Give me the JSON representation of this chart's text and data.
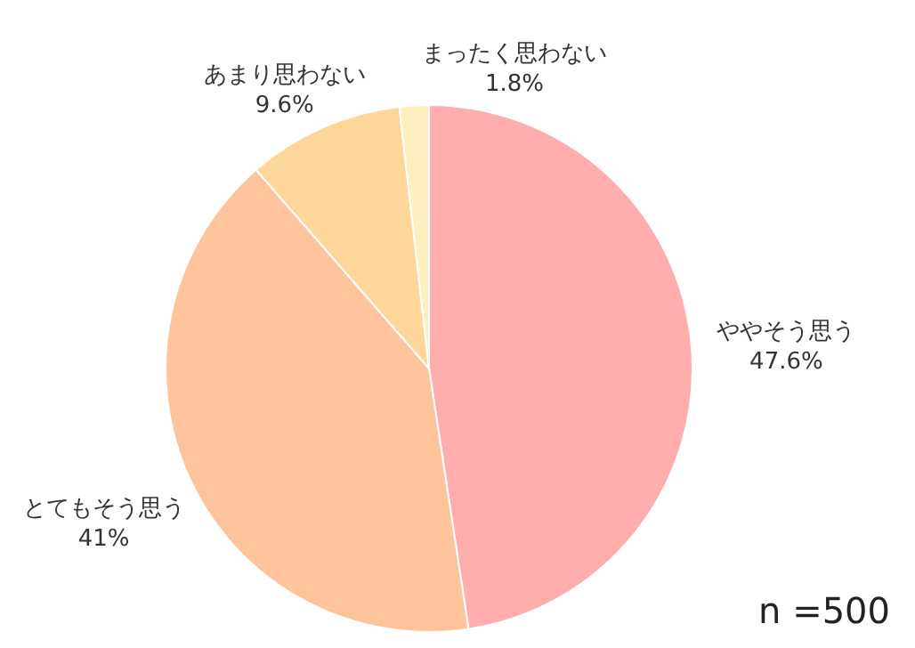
{
  "chart_data": {
    "type": "pie",
    "categories": [
      "ややそう思う",
      "とてもそう思う",
      "あまり思わない",
      "まったく思わない"
    ],
    "values": [
      47.6,
      41,
      9.6,
      1.8
    ],
    "value_labels": [
      "47.6%",
      "41%",
      "9.6%",
      "1.8%"
    ],
    "colors": [
      "#ffadad",
      "#ffc49b",
      "#ffd699",
      "#ffefc0"
    ],
    "annotations": [
      "n =500"
    ]
  }
}
